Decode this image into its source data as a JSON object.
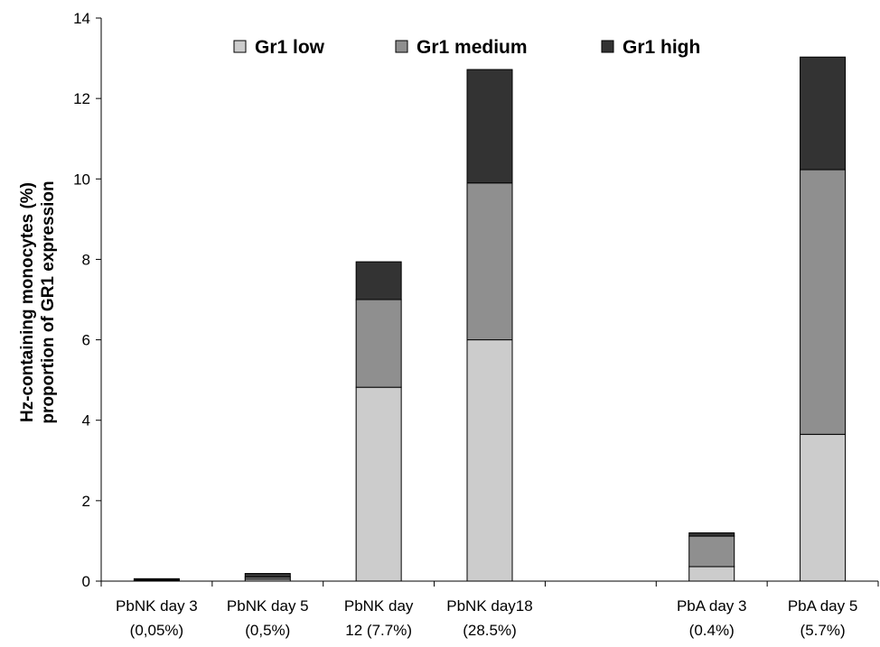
{
  "chart_data": {
    "type": "bar",
    "stacked": true,
    "title": "",
    "xlabel": "",
    "ylabel": [
      "Hz-containing monocytes (%)",
      "proportion of GR1 expression"
    ],
    "ylim": [
      0,
      14
    ],
    "yticks": [
      0,
      2,
      4,
      6,
      8,
      10,
      12,
      14
    ],
    "grid": false,
    "legend_position": "top",
    "categories": [
      [
        "PbNK day 3",
        "(0,05%)"
      ],
      [
        "PbNK day 5",
        "(0,5%)"
      ],
      [
        "PbNK day",
        "12 (7.7%)"
      ],
      [
        "PbNK day18",
        "(28.5%)"
      ],
      [
        "",
        ""
      ],
      [
        "PbA day 3",
        "(0.4%)"
      ],
      [
        "PbA day 5",
        "(5.7%)"
      ]
    ],
    "series": [
      {
        "name": "Gr1 low",
        "color": "#cccccc",
        "values": [
          0.02,
          0.05,
          4.82,
          6.0,
          0,
          0.36,
          3.65
        ]
      },
      {
        "name": "Gr1 medium",
        "color": "#8f8f8f",
        "values": [
          0.02,
          0.05,
          2.18,
          3.9,
          0,
          0.76,
          6.58
        ]
      },
      {
        "name": "Gr1 high",
        "color": "#333333",
        "values": [
          0.02,
          0.09,
          0.94,
          2.82,
          0,
          0.08,
          2.8
        ]
      }
    ]
  }
}
